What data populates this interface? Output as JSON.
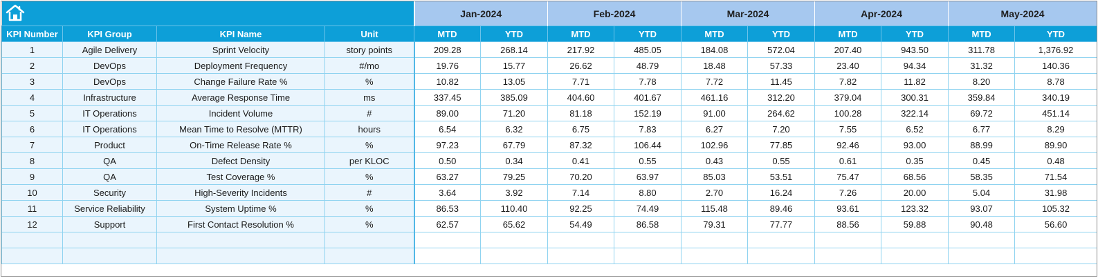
{
  "months": [
    "Jan-2024",
    "Feb-2024",
    "Mar-2024",
    "Apr-2024",
    "May-2024"
  ],
  "headers": {
    "kpi_number": "KPI Number",
    "kpi_group": "KPI Group",
    "kpi_name": "KPI Name",
    "unit": "Unit",
    "mtd": "MTD",
    "ytd": "YTD"
  },
  "home_icon": "home-icon",
  "colors": {
    "header_blue": "#0d9fd8",
    "month_band": "#a6c8ef",
    "label_fill": "#eaf5fd",
    "grid": "#8fd3f0"
  },
  "rows": [
    {
      "num": "1",
      "group": "Agile Delivery",
      "name": "Sprint Velocity",
      "unit": "story points",
      "vals": [
        "209.28",
        "268.14",
        "217.92",
        "485.05",
        "184.08",
        "572.04",
        "207.40",
        "943.50",
        "311.78",
        "1,376.92"
      ]
    },
    {
      "num": "2",
      "group": "DevOps",
      "name": "Deployment Frequency",
      "unit": "#/mo",
      "vals": [
        "19.76",
        "15.77",
        "26.62",
        "48.79",
        "18.48",
        "57.33",
        "23.40",
        "94.34",
        "31.32",
        "140.36"
      ]
    },
    {
      "num": "3",
      "group": "DevOps",
      "name": "Change Failure Rate %",
      "unit": "%",
      "vals": [
        "10.82",
        "13.05",
        "7.71",
        "7.78",
        "7.72",
        "11.45",
        "7.82",
        "11.82",
        "8.20",
        "8.78"
      ]
    },
    {
      "num": "4",
      "group": "Infrastructure",
      "name": "Average Response Time",
      "unit": "ms",
      "vals": [
        "337.45",
        "385.09",
        "404.60",
        "401.67",
        "461.16",
        "312.20",
        "379.04",
        "300.31",
        "359.84",
        "340.19"
      ]
    },
    {
      "num": "5",
      "group": "IT Operations",
      "name": "Incident Volume",
      "unit": "#",
      "vals": [
        "89.00",
        "71.20",
        "81.18",
        "152.19",
        "91.00",
        "264.62",
        "100.28",
        "322.14",
        "69.72",
        "451.14"
      ]
    },
    {
      "num": "6",
      "group": "IT Operations",
      "name": "Mean Time to Resolve (MTTR)",
      "unit": "hours",
      "vals": [
        "6.54",
        "6.32",
        "6.75",
        "7.83",
        "6.27",
        "7.20",
        "7.55",
        "6.52",
        "6.77",
        "8.29"
      ]
    },
    {
      "num": "7",
      "group": "Product",
      "name": "On-Time Release Rate %",
      "unit": "%",
      "vals": [
        "97.23",
        "67.79",
        "87.32",
        "106.44",
        "102.96",
        "77.85",
        "92.46",
        "93.00",
        "88.99",
        "89.90"
      ]
    },
    {
      "num": "8",
      "group": "QA",
      "name": "Defect Density",
      "unit": "per KLOC",
      "vals": [
        "0.50",
        "0.34",
        "0.41",
        "0.55",
        "0.43",
        "0.55",
        "0.61",
        "0.35",
        "0.45",
        "0.48"
      ]
    },
    {
      "num": "9",
      "group": "QA",
      "name": "Test Coverage %",
      "unit": "%",
      "vals": [
        "63.27",
        "79.25",
        "70.20",
        "63.97",
        "85.03",
        "53.51",
        "75.47",
        "68.56",
        "58.35",
        "71.54"
      ]
    },
    {
      "num": "10",
      "group": "Security",
      "name": "High-Severity Incidents",
      "unit": "#",
      "vals": [
        "3.64",
        "3.92",
        "7.14",
        "8.80",
        "2.70",
        "16.24",
        "7.26",
        "20.00",
        "5.04",
        "31.98"
      ]
    },
    {
      "num": "11",
      "group": "Service Reliability",
      "name": "System Uptime %",
      "unit": "%",
      "vals": [
        "86.53",
        "110.40",
        "92.25",
        "74.49",
        "115.48",
        "89.46",
        "93.61",
        "123.32",
        "93.07",
        "105.32"
      ]
    },
    {
      "num": "12",
      "group": "Support",
      "name": "First Contact Resolution %",
      "unit": "%",
      "vals": [
        "62.57",
        "65.62",
        "54.49",
        "86.58",
        "79.31",
        "77.77",
        "88.56",
        "59.88",
        "90.48",
        "56.60"
      ]
    },
    {
      "num": "",
      "group": "",
      "name": "",
      "unit": "",
      "vals": [
        "",
        "",
        "",
        "",
        "",
        "",
        "",
        "",
        "",
        ""
      ]
    },
    {
      "num": "",
      "group": "",
      "name": "",
      "unit": "",
      "vals": [
        "",
        "",
        "",
        "",
        "",
        "",
        "",
        "",
        "",
        ""
      ]
    }
  ]
}
